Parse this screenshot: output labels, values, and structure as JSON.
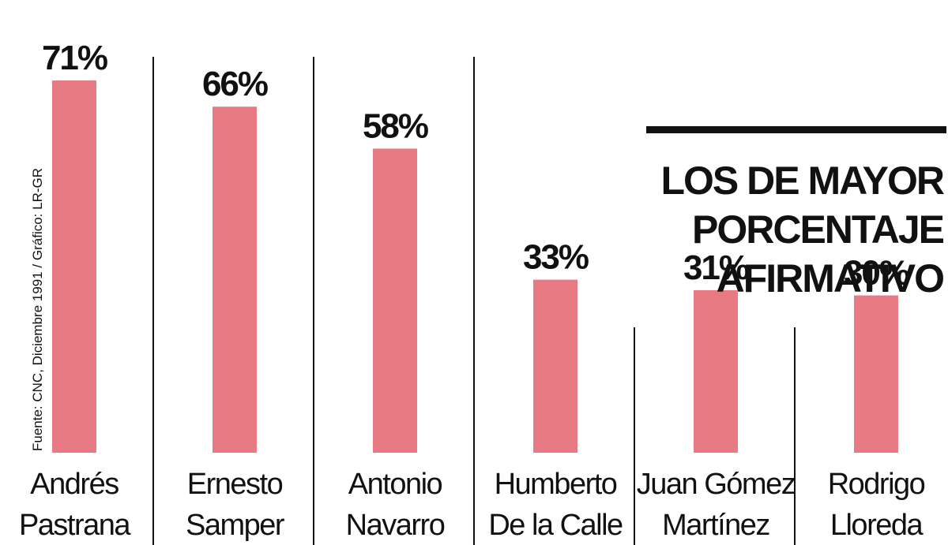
{
  "chart_data": {
    "type": "bar",
    "title": "LOS DE MAYOR PORCENTAJE AFIRMATIVO",
    "title_lines": [
      "LOS DE MAYOR",
      "PORCENTAJE",
      "AFIRMATIVO"
    ],
    "categories": [
      [
        "Andrés",
        "Pastrana"
      ],
      [
        "Ernesto",
        "Samper"
      ],
      [
        "Antonio",
        "Navarro"
      ],
      [
        "Humberto",
        "De la Calle"
      ],
      [
        "Juan Gómez",
        "Martínez"
      ],
      [
        "Rodrigo",
        "Lloreda"
      ]
    ],
    "values": [
      71,
      66,
      58,
      33,
      31,
      30
    ],
    "value_labels": [
      "71%",
      "66%",
      "58%",
      "33%",
      "31%",
      "30%"
    ],
    "unit": "%",
    "ylim": [
      0,
      71
    ],
    "bar_color": "#e87a84",
    "grid": false,
    "legend": "none",
    "source": "Fuente: CNC, Diciembre 1991 / Gráfico: LR-GR"
  }
}
